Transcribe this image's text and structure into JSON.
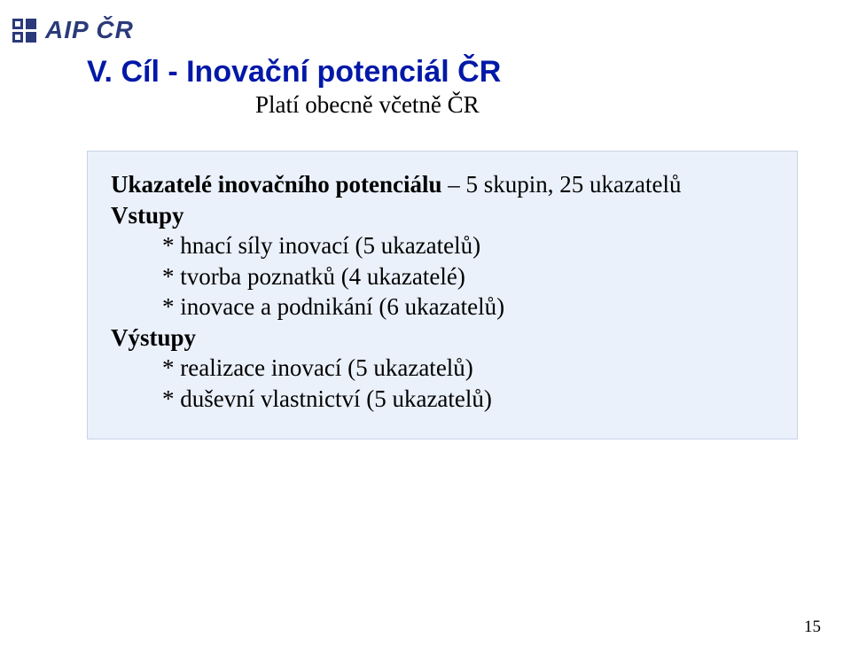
{
  "logo_text": "AIP ČR",
  "title": "V. Cíl - Inovační potenciál ČR",
  "subtitle": "Platí obecně včetně ČR",
  "lead_prefix": "Ukazatelé inovačního potenciálu",
  "lead_suffix": " – 5 skupin, 25 ukazatelů",
  "sections": [
    {
      "heading": "Vstupy",
      "bullets": [
        "* hnací síly inovací (5 ukazatelů)",
        "* tvorba poznatků (4 ukazatelé)",
        "* inovace a podnikání (6 ukazatelů)"
      ]
    },
    {
      "heading": "Výstupy",
      "bullets": [
        "* realizace inovací (5 ukazatelů)",
        "* duševní vlastnictví (5 ukazatelů)"
      ]
    }
  ],
  "page_number": "15",
  "colors": {
    "title": "#0018a8",
    "logo": "#2a3a7a",
    "box_bg": "#ebf1fb",
    "box_border": "#c7d3e9",
    "text": "#000000",
    "background": "#ffffff"
  }
}
